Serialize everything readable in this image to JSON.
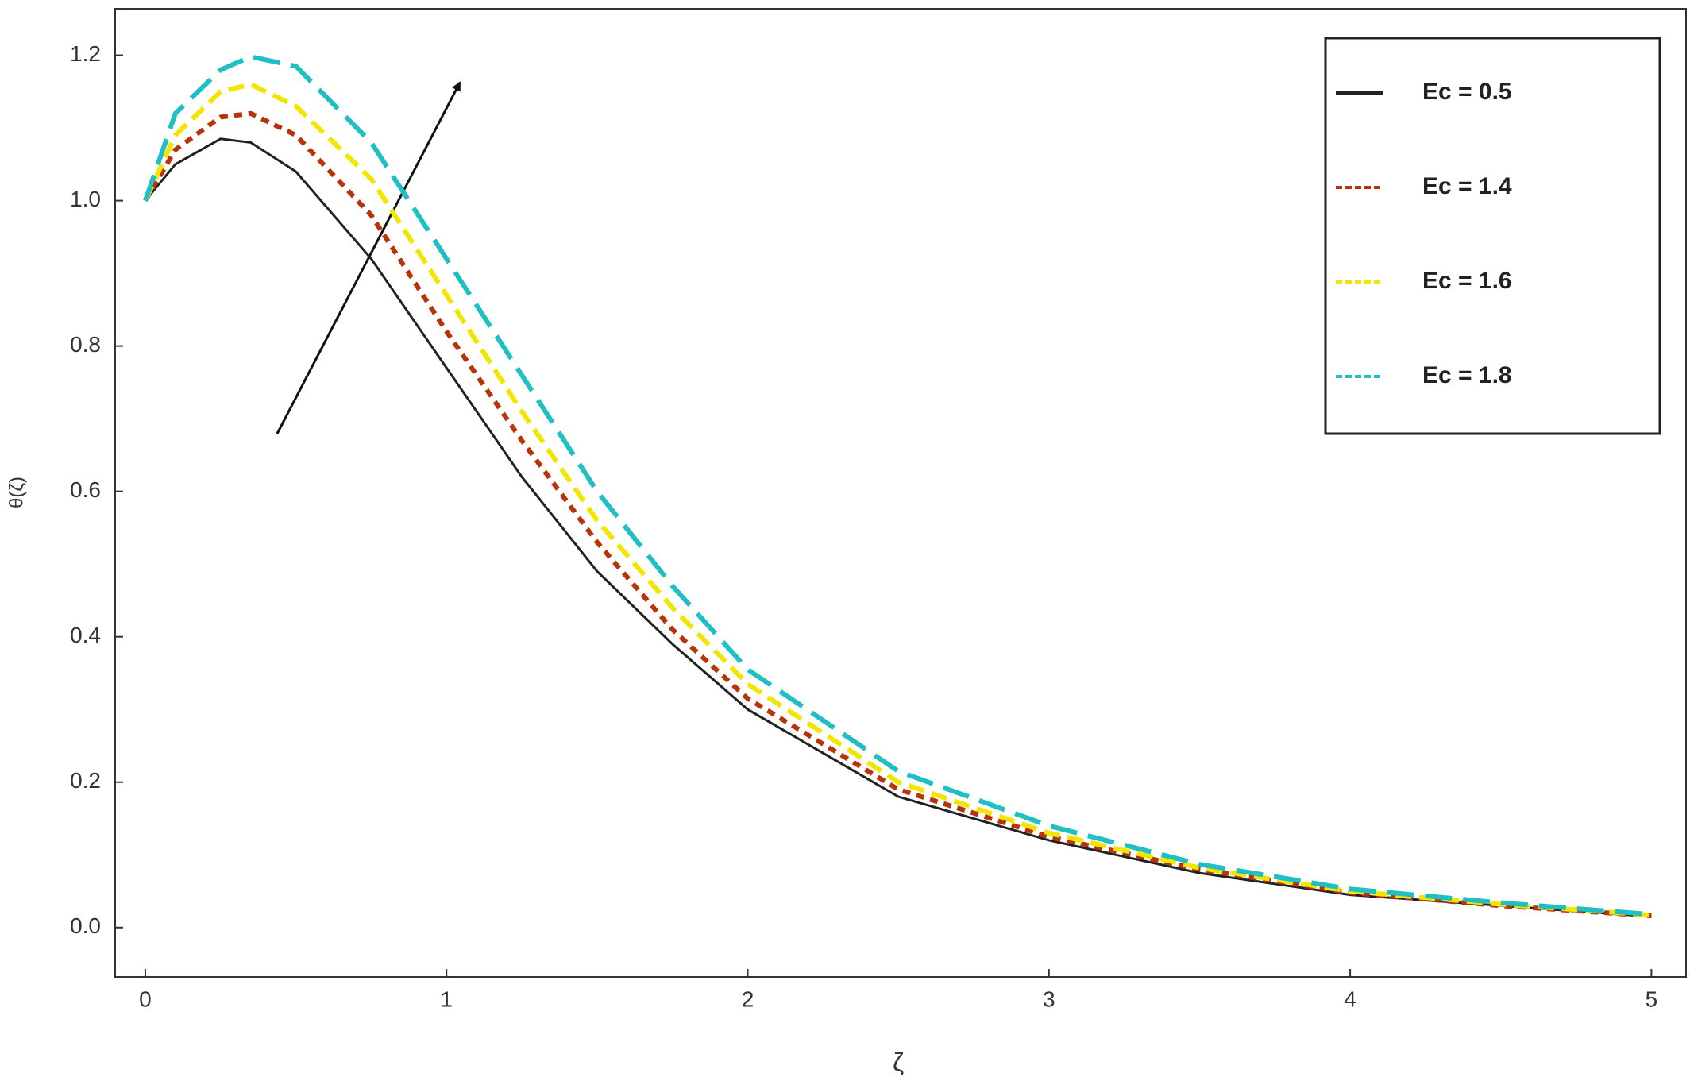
{
  "chart_data": {
    "type": "line",
    "x_label": "ζ",
    "y_label": "θ(ζ)",
    "x": [
      0,
      0.1,
      0.25,
      0.35,
      0.5,
      0.75,
      1,
      1.25,
      1.5,
      1.75,
      2,
      2.5,
      3,
      3.5,
      4,
      4.5,
      5
    ],
    "series": [
      {
        "name": "Ec = 0.5",
        "color": "#222222",
        "style": "solid",
        "values": [
          1.0,
          1.05,
          1.085,
          1.08,
          1.04,
          0.92,
          0.77,
          0.62,
          0.49,
          0.39,
          0.3,
          0.18,
          0.12,
          0.075,
          0.045,
          0.03,
          0.015
        ]
      },
      {
        "name": "Ec = 1.4",
        "color": "#b8330a",
        "style": "dotted",
        "values": [
          1.0,
          1.07,
          1.115,
          1.12,
          1.09,
          0.98,
          0.82,
          0.67,
          0.53,
          0.41,
          0.315,
          0.19,
          0.125,
          0.08,
          0.048,
          0.03,
          0.016
        ]
      },
      {
        "name": "Ec = 1.6",
        "color": "#f2e600",
        "style": "dashed",
        "values": [
          1.0,
          1.09,
          1.15,
          1.16,
          1.13,
          1.03,
          0.87,
          0.71,
          0.56,
          0.44,
          0.335,
          0.2,
          0.13,
          0.082,
          0.05,
          0.032,
          0.017
        ]
      },
      {
        "name": "Ec = 1.8",
        "color": "#1fbfc4",
        "style": "longdash",
        "values": [
          1.0,
          1.12,
          1.18,
          1.198,
          1.185,
          1.08,
          0.92,
          0.76,
          0.6,
          0.47,
          0.355,
          0.215,
          0.14,
          0.087,
          0.053,
          0.034,
          0.018
        ]
      }
    ],
    "xlim": [
      -0.1,
      5.115
    ],
    "ylim": [
      -0.068,
      1.264
    ],
    "xticks": [
      0,
      1,
      2,
      3,
      4,
      5
    ],
    "yticks": [
      {
        "value": 0,
        "label": "0.0"
      },
      0.2,
      0.4,
      0.6,
      0.8,
      {
        "value": 1,
        "label": "1.0"
      },
      1.2
    ],
    "legend": "upper-right"
  }
}
